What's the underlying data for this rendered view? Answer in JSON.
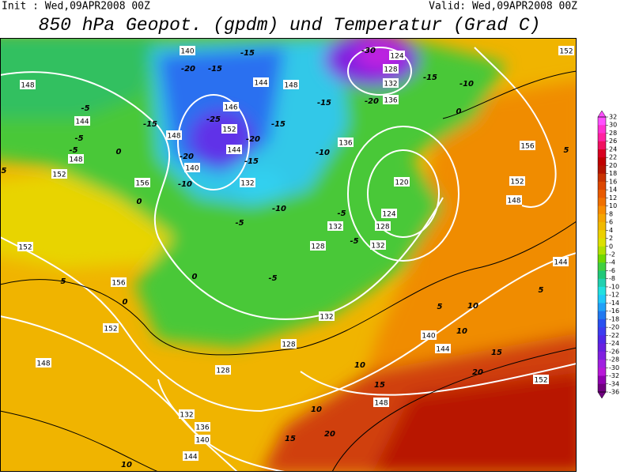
{
  "header": {
    "init": "Init : Wed,09APR2008 00Z",
    "valid": "Valid: Wed,09APR2008 00Z",
    "title": "850 hPa Geopot. (gpdm) und Temperatur (Grad C)"
  },
  "colorbar": {
    "levels": [
      32,
      30,
      28,
      26,
      24,
      22,
      20,
      18,
      16,
      14,
      12,
      10,
      8,
      6,
      4,
      2,
      0,
      -2,
      -4,
      -6,
      -8,
      -10,
      -12,
      -14,
      -16,
      -18,
      -20,
      -22,
      -24,
      -26,
      -28,
      -30,
      -32,
      -34,
      -36
    ],
    "colors": [
      "#ff50ff",
      "#ff30d0",
      "#ff20a0",
      "#f01060",
      "#d80020",
      "#c00000",
      "#b41400",
      "#c83200",
      "#dc4600",
      "#e85a00",
      "#f07000",
      "#f88c00",
      "#f5a500",
      "#f0b900",
      "#ecd000",
      "#dce000",
      "#b0e000",
      "#70d800",
      "#40d040",
      "#20c878",
      "#20d0b0",
      "#20e0e0",
      "#20c8f8",
      "#20a0f8",
      "#2078f0",
      "#2850f0",
      "#3c3cf0",
      "#5028e8",
      "#6820e0",
      "#8020e0",
      "#a020e0",
      "#b818d8",
      "#9000b0",
      "#700080"
    ]
  },
  "map": {
    "height_labels": [
      "152",
      "124",
      "128",
      "132",
      "136",
      "140",
      "144",
      "148",
      "146",
      "148",
      "144",
      "148",
      "152",
      "144",
      "140",
      "148",
      "152",
      "156",
      "136",
      "132",
      "120",
      "124",
      "128",
      "132",
      "128",
      "132",
      "156",
      "152",
      "148",
      "144",
      "152",
      "156",
      "152",
      "148",
      "132",
      "128",
      "128",
      "140",
      "144",
      "148",
      "152",
      "132",
      "136",
      "140",
      "144"
    ],
    "temperature_labels": [
      "-30",
      "-20",
      "-15",
      "-15",
      "-15",
      "-10",
      "-15",
      "-20",
      "-5",
      "-5",
      "-5",
      "-15",
      "-25",
      "-15",
      "0",
      "-20",
      "-10",
      "-20",
      "-15",
      "-10",
      "-10",
      "-5",
      "0",
      "5",
      "0",
      "-5",
      "-5",
      "-5",
      "5",
      "0",
      "0",
      "5",
      "5",
      "5",
      "10",
      "10",
      "15",
      "10",
      "15",
      "20",
      "10",
      "15",
      "20",
      "10"
    ]
  }
}
